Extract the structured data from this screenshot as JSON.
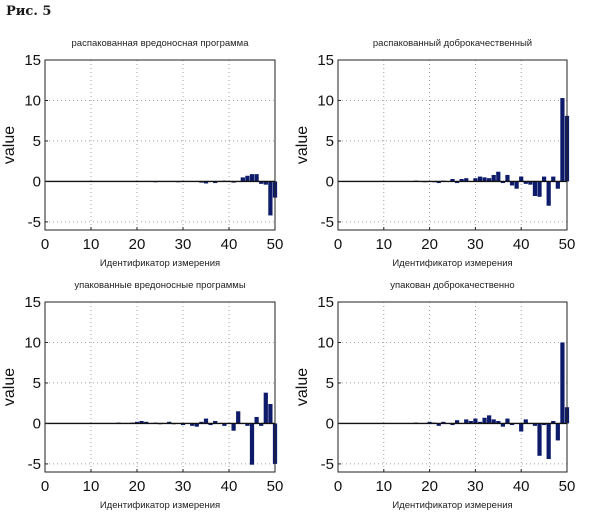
{
  "figure_label": "Рис. 5",
  "chart_data": [
    {
      "type": "bar",
      "title": "распакованная вредоносная программа",
      "xlabel": "Идентификатор измерения",
      "ylabel": "value",
      "xlim": [
        0,
        50
      ],
      "ylim": [
        -6,
        15
      ],
      "xticks": [
        0,
        10,
        20,
        30,
        40,
        50
      ],
      "yticks": [
        -5,
        0,
        5,
        10,
        15
      ],
      "grid": true,
      "x": [
        1,
        2,
        3,
        4,
        5,
        6,
        7,
        8,
        9,
        10,
        11,
        12,
        13,
        14,
        15,
        16,
        17,
        18,
        19,
        20,
        21,
        22,
        23,
        24,
        25,
        26,
        27,
        28,
        29,
        30,
        31,
        32,
        33,
        34,
        35,
        36,
        37,
        38,
        39,
        40,
        41,
        42,
        43,
        44,
        45,
        46,
        47,
        48,
        49,
        50
      ],
      "values": [
        0,
        0,
        0,
        0,
        0,
        0,
        0,
        0,
        0,
        0,
        0,
        0,
        0,
        0,
        0,
        0.05,
        0,
        0,
        0.05,
        -0.05,
        0,
        0,
        0,
        -0.1,
        0,
        -0.05,
        0,
        0,
        -0.1,
        0,
        0,
        0,
        0,
        -0.15,
        -0.25,
        0,
        -0.2,
        0,
        0.1,
        0,
        -0.15,
        0,
        0.5,
        0.7,
        0.9,
        0.9,
        -0.3,
        -0.4,
        -4.2,
        -2.0
      ]
    },
    {
      "type": "bar",
      "title": "распакованный доброкачественный",
      "xlabel": "Идентификатор измерения",
      "ylabel": "value",
      "xlim": [
        0,
        50
      ],
      "ylim": [
        -6,
        15
      ],
      "xticks": [
        0,
        10,
        20,
        30,
        40,
        50
      ],
      "yticks": [
        -5,
        0,
        5,
        10,
        15
      ],
      "grid": true,
      "x": [
        1,
        2,
        3,
        4,
        5,
        6,
        7,
        8,
        9,
        10,
        11,
        12,
        13,
        14,
        15,
        16,
        17,
        18,
        19,
        20,
        21,
        22,
        23,
        24,
        25,
        26,
        27,
        28,
        29,
        30,
        31,
        32,
        33,
        34,
        35,
        36,
        37,
        38,
        39,
        40,
        41,
        42,
        43,
        44,
        45,
        46,
        47,
        48,
        49,
        50
      ],
      "values": [
        0,
        0,
        0,
        0,
        0,
        0,
        0,
        0,
        0,
        0,
        0,
        0,
        0,
        0,
        0,
        0,
        0.1,
        0,
        -0.1,
        0,
        -0.1,
        -0.2,
        0.1,
        0,
        0.3,
        -0.2,
        0.3,
        0.4,
        0,
        0.4,
        0.6,
        0.5,
        0.4,
        0.8,
        1.2,
        -0.2,
        0.8,
        -0.5,
        -0.9,
        0.6,
        -0.3,
        -0.4,
        -1.8,
        -1.9,
        0.6,
        -3.0,
        0.6,
        -0.9,
        10.3,
        8.1
      ]
    },
    {
      "type": "bar",
      "title": "упакованные вредоносные программы",
      "xlabel": "Идентификатор измерения",
      "ylabel": "value",
      "xlim": [
        0,
        50
      ],
      "ylim": [
        -6,
        15
      ],
      "xticks": [
        0,
        10,
        20,
        30,
        40,
        50
      ],
      "yticks": [
        -5,
        0,
        5,
        10,
        15
      ],
      "grid": true,
      "x": [
        1,
        2,
        3,
        4,
        5,
        6,
        7,
        8,
        9,
        10,
        11,
        12,
        13,
        14,
        15,
        16,
        17,
        18,
        19,
        20,
        21,
        22,
        23,
        24,
        25,
        26,
        27,
        28,
        29,
        30,
        31,
        32,
        33,
        34,
        35,
        36,
        37,
        38,
        39,
        40,
        41,
        42,
        43,
        44,
        45,
        46,
        47,
        48,
        49,
        50
      ],
      "values": [
        0,
        0,
        0,
        0,
        0,
        0,
        0,
        0,
        0,
        0,
        0,
        0,
        0,
        0,
        0,
        0.1,
        0,
        0,
        0.1,
        0.2,
        0.3,
        0.2,
        0,
        0.1,
        -0.1,
        0,
        0.2,
        -0.1,
        0,
        -0.2,
        0,
        -0.3,
        -0.4,
        0.2,
        0.6,
        -0.2,
        0.3,
        0,
        -0.3,
        0,
        -0.9,
        1.5,
        0,
        -0.3,
        -5.1,
        0.8,
        -0.3,
        3.8,
        2.4,
        -5.0
      ]
    },
    {
      "type": "bar",
      "title": "упакован доброкачественно",
      "xlabel": "Идентификатор измерения",
      "ylabel": "value",
      "xlim": [
        0,
        50
      ],
      "ylim": [
        -6,
        15
      ],
      "xticks": [
        0,
        10,
        20,
        30,
        40,
        50
      ],
      "yticks": [
        -5,
        0,
        5,
        10,
        15
      ],
      "grid": true,
      "x": [
        1,
        2,
        3,
        4,
        5,
        6,
        7,
        8,
        9,
        10,
        11,
        12,
        13,
        14,
        15,
        16,
        17,
        18,
        19,
        20,
        21,
        22,
        23,
        24,
        25,
        26,
        27,
        28,
        29,
        30,
        31,
        32,
        33,
        34,
        35,
        36,
        37,
        38,
        39,
        40,
        41,
        42,
        43,
        44,
        45,
        46,
        47,
        48,
        49,
        50
      ],
      "values": [
        0,
        0,
        0,
        0,
        0,
        0,
        0,
        0,
        0,
        0,
        0,
        0,
        0,
        0,
        0,
        0,
        0.1,
        0,
        0,
        0.2,
        0.1,
        -0.3,
        0.2,
        0,
        -0.2,
        0.4,
        0,
        0.5,
        0.3,
        0.6,
        0.2,
        0.7,
        1.0,
        0.5,
        0.3,
        -0.4,
        0.6,
        -0.2,
        0,
        -1.0,
        0.5,
        0,
        -0.3,
        -4.0,
        -0.2,
        -4.4,
        0.3,
        -2.1,
        10.0,
        2.0
      ]
    }
  ]
}
